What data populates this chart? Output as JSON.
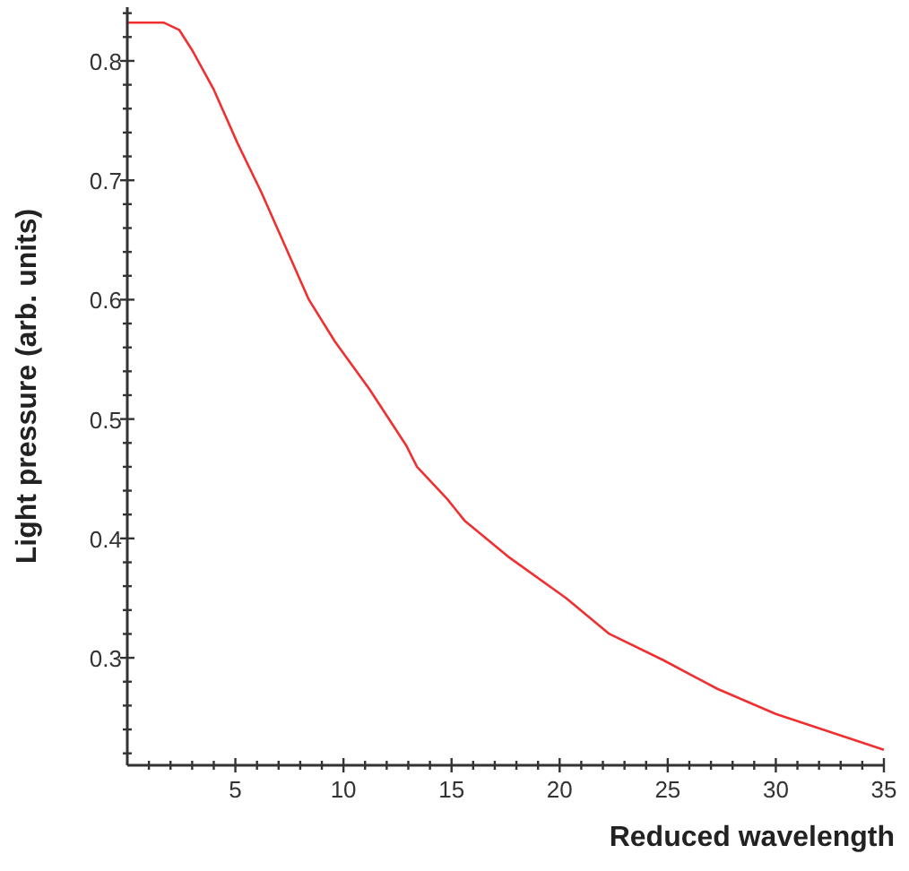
{
  "chart_data": {
    "type": "line",
    "xlabel": "Reduced wavelength",
    "ylabel": "Light pressure (arb. units)",
    "xlim": [
      0,
      35
    ],
    "ylim": [
      0.21,
      0.845
    ],
    "xticks": [
      {
        "value": 1,
        "label": null
      },
      {
        "value": 2,
        "label": null
      },
      {
        "value": 3,
        "label": null
      },
      {
        "value": 4,
        "label": null
      },
      5,
      {
        "value": 6,
        "label": null
      },
      {
        "value": 7,
        "label": null
      },
      {
        "value": 8,
        "label": null
      },
      {
        "value": 9,
        "label": null
      },
      10,
      {
        "value": 11,
        "label": null
      },
      {
        "value": 12,
        "label": null
      },
      {
        "value": 13,
        "label": null
      },
      {
        "value": 14,
        "label": null
      },
      15,
      {
        "value": 16,
        "label": null
      },
      {
        "value": 17,
        "label": null
      },
      {
        "value": 18,
        "label": null
      },
      {
        "value": 19,
        "label": null
      },
      20,
      {
        "value": 21,
        "label": null
      },
      {
        "value": 22,
        "label": null
      },
      {
        "value": 23,
        "label": null
      },
      {
        "value": 24,
        "label": null
      },
      25,
      {
        "value": 26,
        "label": null
      },
      {
        "value": 27,
        "label": null
      },
      {
        "value": 28,
        "label": null
      },
      {
        "value": 29,
        "label": null
      },
      30,
      {
        "value": 31,
        "label": null
      },
      {
        "value": 32,
        "label": null
      },
      {
        "value": 33,
        "label": null
      },
      {
        "value": 34,
        "label": null
      },
      35
    ],
    "yticks": [
      {
        "value": 0.22,
        "label": null
      },
      {
        "value": 0.24,
        "label": null
      },
      {
        "value": 0.26,
        "label": null
      },
      {
        "value": 0.28,
        "label": null
      },
      0.3,
      {
        "value": 0.32,
        "label": null
      },
      {
        "value": 0.34,
        "label": null
      },
      {
        "value": 0.36,
        "label": null
      },
      {
        "value": 0.38,
        "label": null
      },
      0.4,
      {
        "value": 0.42,
        "label": null
      },
      {
        "value": 0.44,
        "label": null
      },
      {
        "value": 0.46,
        "label": null
      },
      {
        "value": 0.48,
        "label": null
      },
      0.5,
      {
        "value": 0.52,
        "label": null
      },
      {
        "value": 0.54,
        "label": null
      },
      {
        "value": 0.56,
        "label": null
      },
      {
        "value": 0.58,
        "label": null
      },
      0.6,
      {
        "value": 0.62,
        "label": null
      },
      {
        "value": 0.64,
        "label": null
      },
      {
        "value": 0.66,
        "label": null
      },
      {
        "value": 0.68,
        "label": null
      },
      0.7,
      {
        "value": 0.72,
        "label": null
      },
      {
        "value": 0.74,
        "label": null
      },
      {
        "value": 0.76,
        "label": null
      },
      {
        "value": 0.78,
        "label": null
      },
      0.8,
      {
        "value": 0.82,
        "label": null
      },
      {
        "value": 0.84,
        "label": null
      }
    ],
    "grid": false,
    "marker": "none",
    "line_style": "solid",
    "series": [
      {
        "color": "#f03030",
        "x": [
          0,
          1.7,
          2.4,
          3,
          4,
          5.1,
          6.2,
          7.3,
          8.4,
          9.6,
          11.2,
          12.9,
          13.4,
          14.8,
          15.6,
          17.6,
          20.3,
          22.3,
          24.8,
          27.3,
          30,
          32.5,
          35
        ],
        "values": [
          0.832,
          0.832,
          0.826,
          0.809,
          0.776,
          0.731,
          0.69,
          0.645,
          0.6,
          0.565,
          0.525,
          0.478,
          0.46,
          0.433,
          0.415,
          0.385,
          0.35,
          0.32,
          0.298,
          0.274,
          0.253,
          0.238,
          0.223
        ]
      }
    ]
  }
}
